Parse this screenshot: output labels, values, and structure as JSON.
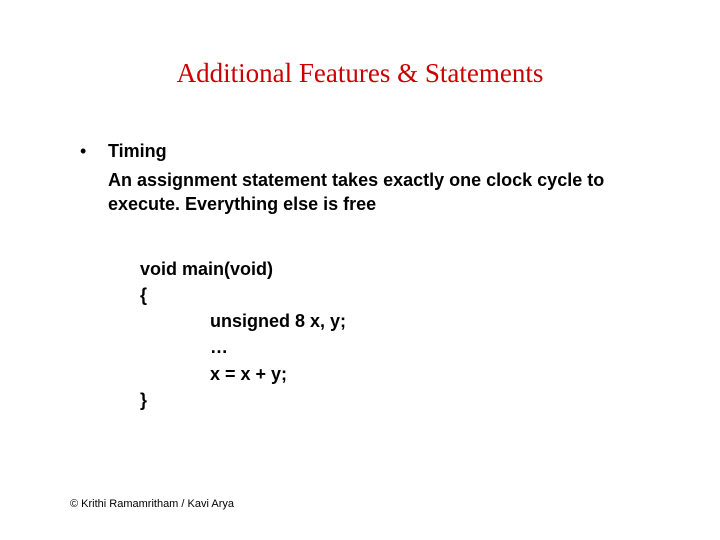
{
  "title": "Additional Features & Statements",
  "bullet": {
    "mark": "•",
    "label": "Timing",
    "sub": "An assignment statement takes exactly one clock cycle to execute. Everything else is free"
  },
  "code": {
    "l1": "void main(void)",
    "l2": "{",
    "l3": "unsigned 8 x, y;",
    "l4": "…",
    "l5": "x = x + y;",
    "l6": "}"
  },
  "footer": "© Krithi Ramamritham / Kavi Arya",
  "colors": {
    "title": "#cc0000",
    "text": "#000000",
    "background": "#ffffff"
  },
  "fonts": {
    "title_family": "Comic Sans MS",
    "title_size_pt": 27,
    "body_size_pt": 18,
    "footer_size_pt": 11
  }
}
